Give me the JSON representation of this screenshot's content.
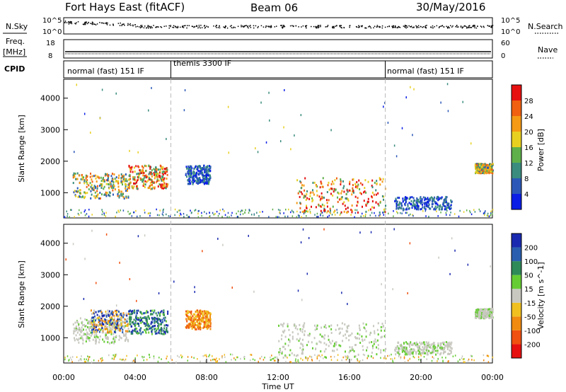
{
  "header": {
    "station": "Fort Hays East (fitACF)",
    "beam": "Beam 06",
    "date": "30/May/2016"
  },
  "strips": {
    "left_label_nsky": "N.Sky",
    "left_label_freq_1": "Freq.",
    "left_label_freq_2": "[MHz]",
    "left_label_cpid": "CPID",
    "right_label_nsearch": "N.Search",
    "right_label_nave": "Nave",
    "nsky_ticks": [
      "10^5",
      "10^0"
    ],
    "freq_ticks": [
      "18",
      "8"
    ],
    "nsearch_ticks": [
      "10^5",
      "10^0"
    ],
    "nave_ticks": [
      "60",
      "0"
    ]
  },
  "cpid_segments": [
    {
      "label": "normal (fast) 151 IF",
      "start_hour": 0,
      "end_hour": 6
    },
    {
      "label": "themis 3300 IF",
      "start_hour": 6,
      "end_hour": 18
    },
    {
      "label": "normal (fast) 151 IF",
      "start_hour": 18,
      "end_hour": 24
    }
  ],
  "chart_data": [
    {
      "type": "heatmap",
      "name": "Power",
      "ylabel": "Slant Range [km]",
      "ylim": [
        200,
        4600
      ],
      "yticks": [
        1000,
        2000,
        3000,
        4000
      ],
      "xlim": [
        0,
        24
      ],
      "colorbar": {
        "label": "Power [dB]",
        "ticks": [
          "4",
          "8",
          "12",
          "16",
          "20",
          "24",
          "28"
        ],
        "colors": [
          "#0a1ee6",
          "#2b58b8",
          "#3a8c7e",
          "#5fb04a",
          "#e8d020",
          "#f59a14",
          "#f06010",
          "#e61010"
        ]
      },
      "regions": [
        {
          "t0": 0.5,
          "t1": 3.6,
          "r0": 850,
          "r1": 1650,
          "level": "mid"
        },
        {
          "t0": 3.6,
          "t1": 5.8,
          "r0": 1150,
          "r1": 1900,
          "level": "high"
        },
        {
          "t0": 6.8,
          "t1": 8.2,
          "r0": 1300,
          "r1": 1900,
          "level": "low"
        },
        {
          "t0": 13.0,
          "t1": 18.0,
          "r0": 400,
          "r1": 1500,
          "level": "high"
        },
        {
          "t0": 18.5,
          "t1": 21.7,
          "r0": 500,
          "r1": 900,
          "level": "low"
        },
        {
          "t0": 23.0,
          "t1": 24.0,
          "r0": 1650,
          "r1": 1950,
          "level": "mid"
        }
      ]
    },
    {
      "type": "heatmap",
      "name": "Velocity",
      "ylabel": "Slant Range [km]",
      "ylim": [
        200,
        4600
      ],
      "yticks": [
        1000,
        2000,
        3000,
        4000
      ],
      "xlim": [
        0,
        24
      ],
      "xlabel": "Time UT",
      "xticks": [
        "00:00",
        "04:00",
        "08:00",
        "12:00",
        "16:00",
        "20:00",
        "00:00"
      ],
      "colorbar": {
        "label": "Velocity [m s^-1]",
        "ticks": [
          "200",
          "100",
          "50",
          "15",
          "-15",
          "-50",
          "-100",
          "-200"
        ],
        "colors": [
          "#1a2ab0",
          "#2a5fb0",
          "#2e8a58",
          "#66cc33",
          "#c8c8c0",
          "#f0c020",
          "#f08a10",
          "#f05010",
          "#e61010"
        ]
      },
      "regions": [
        {
          "t0": 0.5,
          "t1": 3.6,
          "r0": 850,
          "r1": 1650,
          "level": "ground"
        },
        {
          "t0": 1.5,
          "t1": 3.6,
          "r0": 1200,
          "r1": 1900,
          "level": "toward"
        },
        {
          "t0": 3.6,
          "t1": 5.8,
          "r0": 1150,
          "r1": 1900,
          "level": "away"
        },
        {
          "t0": 6.8,
          "t1": 8.2,
          "r0": 1300,
          "r1": 1900,
          "level": "neg"
        },
        {
          "t0": 12.0,
          "t1": 18.0,
          "r0": 400,
          "r1": 1500,
          "level": "ground"
        },
        {
          "t0": 18.5,
          "t1": 21.7,
          "r0": 500,
          "r1": 900,
          "level": "ground"
        },
        {
          "t0": 23.0,
          "t1": 24.0,
          "r0": 1650,
          "r1": 1950,
          "level": "ground"
        }
      ]
    }
  ]
}
